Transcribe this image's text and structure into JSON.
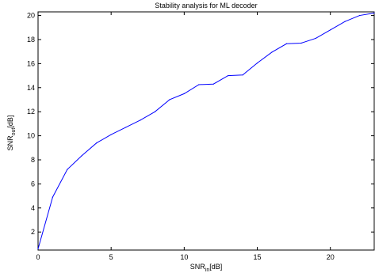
{
  "chart_data": {
    "type": "line",
    "title": "Stability analysis for ML decoder",
    "xlabel": {
      "base": "SNR",
      "sub": "in",
      "unit": "[dB]"
    },
    "ylabel": {
      "base": "SNR",
      "sub": "out",
      "unit": "[dB]"
    },
    "xlim": [
      0,
      23
    ],
    "ylim": [
      0.5,
      20.3
    ],
    "xticks": [
      0,
      5,
      10,
      15,
      20
    ],
    "yticks": [
      2,
      4,
      6,
      8,
      10,
      12,
      14,
      16,
      18,
      20
    ],
    "grid": false,
    "legend": "none",
    "colors": {
      "line": "#0000ff",
      "axes": "#000000",
      "background": "#ffffff"
    },
    "series": [
      {
        "x": [
          0,
          1,
          2,
          3,
          4,
          5,
          6,
          7,
          8,
          9,
          10,
          11,
          12,
          13,
          14,
          15,
          16,
          17,
          18,
          19,
          20,
          21,
          22,
          23
        ],
        "y": [
          0.6,
          4.9,
          7.2,
          8.35,
          9.4,
          10.1,
          10.7,
          11.3,
          12.0,
          13.0,
          13.5,
          14.25,
          14.3,
          15.0,
          15.05,
          16.05,
          16.95,
          17.65,
          17.7,
          18.1,
          18.8,
          19.5,
          20.0,
          20.2
        ]
      }
    ]
  }
}
